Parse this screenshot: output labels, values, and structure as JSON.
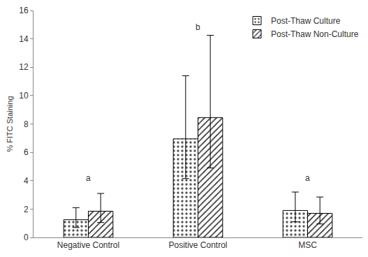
{
  "chart_data": {
    "type": "bar",
    "y_label": "% FITC Staining",
    "categories": [
      "Negative Control",
      "Positive Control",
      "MSC"
    ],
    "series": [
      {
        "name": "Post-Thaw Culture",
        "color": "#d4d4d4",
        "marker": "dotted",
        "values": [
          1.25,
          6.95,
          1.9
        ],
        "error_plus": [
          0.85,
          4.45,
          1.3
        ],
        "error_minus": [
          0.55,
          2.8,
          0.8
        ]
      },
      {
        "name": "Post-Thaw Non-Culture",
        "color": "#7a7a7a",
        "marker": "hatched",
        "values": [
          1.85,
          8.45,
          1.7
        ],
        "error_plus": [
          1.25,
          5.8,
          1.15
        ],
        "error_minus": [
          0.8,
          3.55,
          0.75
        ]
      }
    ],
    "annotations": [
      {
        "text": "a",
        "category": "Negative Control",
        "y": 4.2
      },
      {
        "text": "b",
        "category": "Positive Control",
        "y": 14.8
      },
      {
        "text": "a",
        "category": "MSC",
        "y": 4.2
      }
    ],
    "ylim": [
      0,
      16
    ],
    "yticks": [
      0,
      2,
      4,
      6,
      8,
      10,
      12,
      14,
      16
    ],
    "grid": false,
    "legend": "top right"
  }
}
